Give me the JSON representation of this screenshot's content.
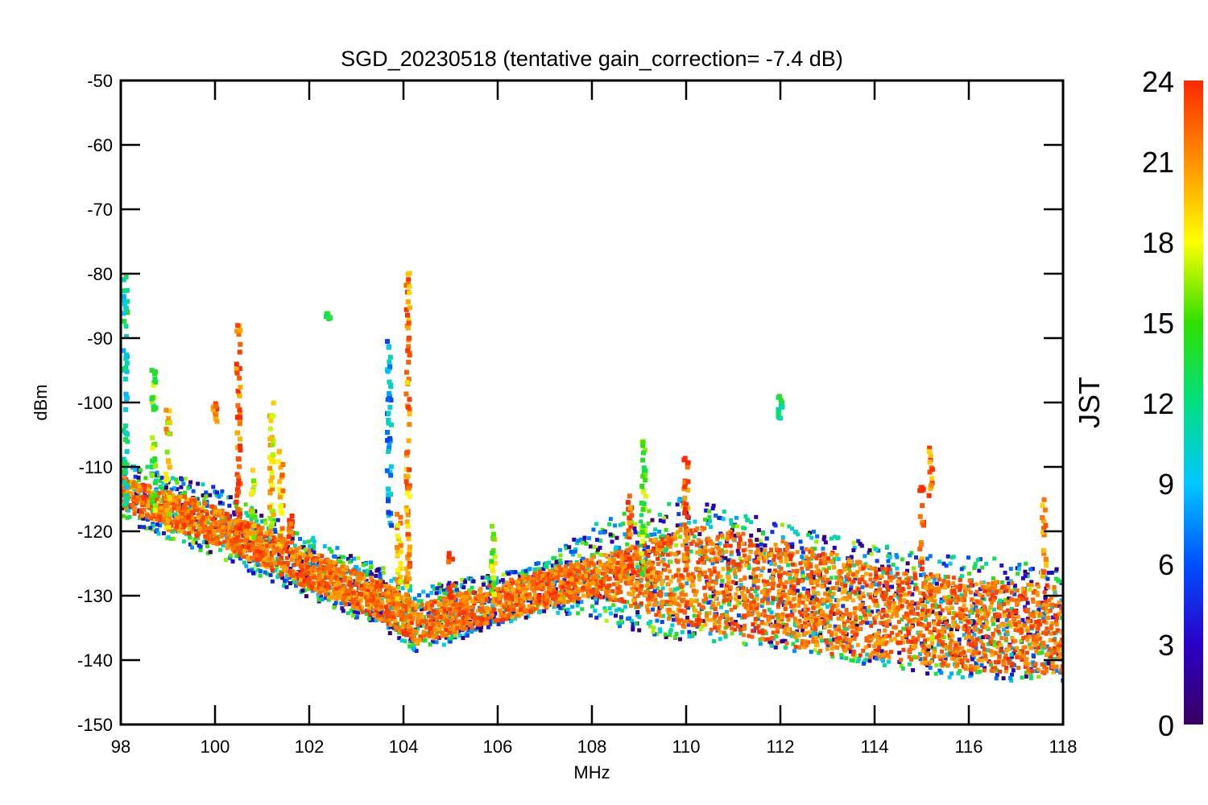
{
  "chart_data": {
    "type": "scatter",
    "title": "SGD_20230518 (tentative gain_correction= -7.4 dB)",
    "xlabel": "MHz",
    "ylabel": "dBm",
    "xlim": [
      98,
      118
    ],
    "ylim": [
      -150,
      -50
    ],
    "xticks": [
      98,
      100,
      102,
      104,
      106,
      108,
      110,
      112,
      114,
      116,
      118
    ],
    "yticks": [
      -50,
      -60,
      -70,
      -80,
      -90,
      -100,
      -110,
      -120,
      -130,
      -140,
      -150
    ],
    "grid": false,
    "colorbar": {
      "label": "JST",
      "range": [
        0,
        24
      ],
      "ticks": [
        0,
        3,
        6,
        9,
        12,
        15,
        18,
        21,
        24
      ],
      "colormap": "rainbow",
      "colors": [
        "#3a0060",
        "#2a00c8",
        "#0050ff",
        "#00c8ff",
        "#00e080",
        "#30e000",
        "#ffff00",
        "#ff9000",
        "#ff2800"
      ]
    },
    "noise_floor": {
      "x": [
        98,
        100,
        102,
        103.6,
        104.3,
        105,
        106,
        107,
        108,
        109,
        110,
        111,
        112,
        113,
        114,
        115,
        116,
        117,
        118
      ],
      "y": [
        -114,
        -119,
        -126,
        -131,
        -134.5,
        -133,
        -131,
        -129,
        -127,
        -127,
        -127,
        -128,
        -129.5,
        -131,
        -132.5,
        -133.5,
        -134.5,
        -135,
        -135.5
      ],
      "spread_day": [
        2.5,
        3,
        3,
        3,
        3,
        3,
        3,
        3,
        3,
        5,
        8,
        8,
        8,
        8,
        7,
        7,
        7,
        7,
        7
      ],
      "spread_night": [
        6,
        7,
        6,
        6,
        6,
        6,
        5,
        5,
        9,
        12,
        14,
        13,
        12,
        12,
        12,
        12,
        12,
        12,
        11
      ]
    },
    "spikes": [
      {
        "x": 98.1,
        "ymin": -116,
        "ymax": -80,
        "jst": 11
      },
      {
        "x": 98.7,
        "ymin": -118,
        "ymax": -94,
        "jst": 15
      },
      {
        "x": 99.0,
        "ymin": -120,
        "ymax": -101,
        "jst": 19
      },
      {
        "x": 100.0,
        "ymin": -103,
        "ymax": -100,
        "jst": 23
      },
      {
        "x": 100.5,
        "ymin": -123,
        "ymax": -87,
        "jst": 23
      },
      {
        "x": 100.8,
        "ymin": -122,
        "ymax": -110,
        "jst": 18
      },
      {
        "x": 101.2,
        "ymin": -120,
        "ymax": -99,
        "jst": 19
      },
      {
        "x": 101.4,
        "ymin": -122,
        "ymax": -105,
        "jst": 20
      },
      {
        "x": 101.6,
        "ymin": -121,
        "ymax": -117,
        "jst": 23
      },
      {
        "x": 102.4,
        "ymin": -87,
        "ymax": -86,
        "jst": 14
      },
      {
        "x": 103.7,
        "ymin": -120,
        "ymax": -90,
        "jst": 8
      },
      {
        "x": 103.9,
        "ymin": -132,
        "ymax": -116,
        "jst": 20
      },
      {
        "x": 104.1,
        "ymin": -131,
        "ymax": -79,
        "jst": 21
      },
      {
        "x": 105.0,
        "ymin": -131,
        "ymax": -123,
        "jst": 23
      },
      {
        "x": 105.9,
        "ymin": -130,
        "ymax": -117,
        "jst": 17
      },
      {
        "x": 108.8,
        "ymin": -126,
        "ymax": -114,
        "jst": 23
      },
      {
        "x": 109.1,
        "ymin": -127,
        "ymax": -106,
        "jst": 15
      },
      {
        "x": 110.0,
        "ymin": -126,
        "ymax": -108,
        "jst": 23
      },
      {
        "x": 112.0,
        "ymin": -103,
        "ymax": -99,
        "jst": 13
      },
      {
        "x": 115.0,
        "ymin": -126,
        "ymax": -113,
        "jst": 23
      },
      {
        "x": 115.2,
        "ymin": -116,
        "ymax": -107,
        "jst": 22
      },
      {
        "x": 117.6,
        "ymin": -128,
        "ymax": -115,
        "jst": 20
      }
    ]
  }
}
